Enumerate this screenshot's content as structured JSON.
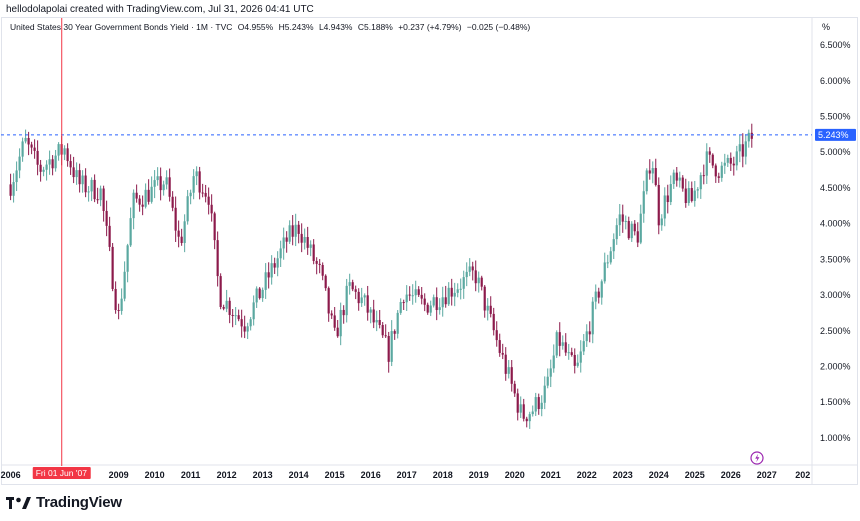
{
  "credit": "hellodolapolai created with TradingView.com, Jul 31, 2026 04:41 UTC",
  "legend": {
    "title": "United States 30 Year Government Bonds Yield · 1M · TVC",
    "open": "O4.955%",
    "high": "H5.243%",
    "low": "L4.943%",
    "close": "C5.188%",
    "change": "+0.237 (+4.79%)",
    "extra": "−0.025 (−0.48%)"
  },
  "axis_unit": "%",
  "crosshair_label": "Fri 01 Jun '07",
  "price_label": "5.243%",
  "brand": "TradingView",
  "colors": {
    "up": "#5aa8a0",
    "down": "#8c1a4b",
    "crosshair": "#f23645",
    "price_line": "#2962ff"
  },
  "chart_data": {
    "type": "candlestick",
    "interval": "1M",
    "x_ticks": [
      "2006",
      "2009",
      "2010",
      "2011",
      "2012",
      "2013",
      "2014",
      "2015",
      "2016",
      "2017",
      "2018",
      "2019",
      "2020",
      "2021",
      "2022",
      "2023",
      "2024",
      "2025",
      "2026",
      "2027",
      "202"
    ],
    "y_ticks": [
      "6.500%",
      "6.000%",
      "5.500%",
      "5.000%",
      "4.500%",
      "4.000%",
      "3.500%",
      "3.000%",
      "2.500%",
      "2.000%",
      "1.500%",
      "1.000%"
    ],
    "ylim": [
      0.62,
      6.88
    ],
    "xlim": [
      2005.9,
      2028.2
    ],
    "current_price": 5.243,
    "crosshair_x": 2007.42,
    "annual_path": [
      [
        2006.0,
        4.55
      ],
      [
        2006.4,
        5.15
      ],
      [
        2006.8,
        4.75
      ],
      [
        2007.0,
        4.85
      ],
      [
        2007.5,
        5.05
      ],
      [
        2007.9,
        4.55
      ],
      [
        2008.5,
        4.45
      ],
      [
        2008.9,
        3.0
      ],
      [
        2009.0,
        2.7
      ],
      [
        2009.4,
        4.3
      ],
      [
        2009.9,
        4.45
      ],
      [
        2010.3,
        4.6
      ],
      [
        2010.7,
        3.7
      ],
      [
        2011.1,
        4.7
      ],
      [
        2011.5,
        4.4
      ],
      [
        2011.8,
        3.0
      ],
      [
        2012.5,
        2.6
      ],
      [
        2013.0,
        3.1
      ],
      [
        2013.7,
        3.8
      ],
      [
        2014.0,
        3.95
      ],
      [
        2014.6,
        3.3
      ],
      [
        2015.0,
        2.4
      ],
      [
        2015.4,
        3.1
      ],
      [
        2015.8,
        2.9
      ],
      [
        2016.5,
        2.2
      ],
      [
        2016.9,
        3.05
      ],
      [
        2017.5,
        2.85
      ],
      [
        2018.0,
        3.0
      ],
      [
        2018.9,
        3.3
      ],
      [
        2019.6,
        2.2
      ],
      [
        2020.2,
        1.3
      ],
      [
        2020.5,
        1.4
      ],
      [
        2020.9,
        1.7
      ],
      [
        2021.2,
        2.4
      ],
      [
        2021.7,
        1.9
      ],
      [
        2022.3,
        3.0
      ],
      [
        2022.9,
        4.1
      ],
      [
        2023.4,
        3.8
      ],
      [
        2023.8,
        5.0
      ],
      [
        2024.0,
        4.1
      ],
      [
        2024.4,
        4.6
      ],
      [
        2024.9,
        4.3
      ],
      [
        2025.3,
        4.9
      ],
      [
        2025.7,
        4.75
      ],
      [
        2026.1,
        4.85
      ],
      [
        2026.56,
        5.19
      ]
    ]
  }
}
